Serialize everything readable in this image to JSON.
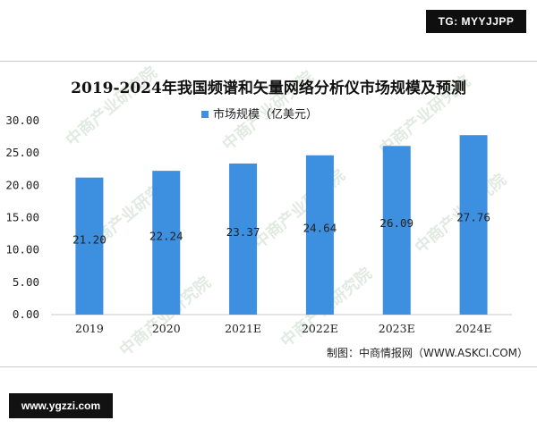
{
  "badges": {
    "top_right": "TG: MYYJJPP",
    "bottom_left": "www.ygzzi.com"
  },
  "watermark": {
    "text": "中商产业研究院"
  },
  "source": "制图：中商情报网（WWW.ASKCI.COM）",
  "chart_data": {
    "type": "bar",
    "title": "2019-2024年我国频谱和矢量网络分析仪市场规模及预测",
    "categories": [
      "2019",
      "2020",
      "2021E",
      "2022E",
      "2023E",
      "2024E"
    ],
    "series": [
      {
        "name": "市场规模（亿美元）",
        "values": [
          21.2,
          22.24,
          23.37,
          24.64,
          26.09,
          27.76
        ]
      }
    ],
    "data_labels": [
      "21.20",
      "22.24",
      "23.37",
      "24.64",
      "26.09",
      "27.76"
    ],
    "yticks": [
      "0.00",
      "5.00",
      "10.00",
      "15.00",
      "20.00",
      "25.00",
      "30.00"
    ],
    "ylim": [
      0,
      30
    ],
    "grid": false,
    "legend": "top-center",
    "colors": {
      "bar": "#3d8fe0",
      "axis": "#c8c8c8"
    }
  }
}
